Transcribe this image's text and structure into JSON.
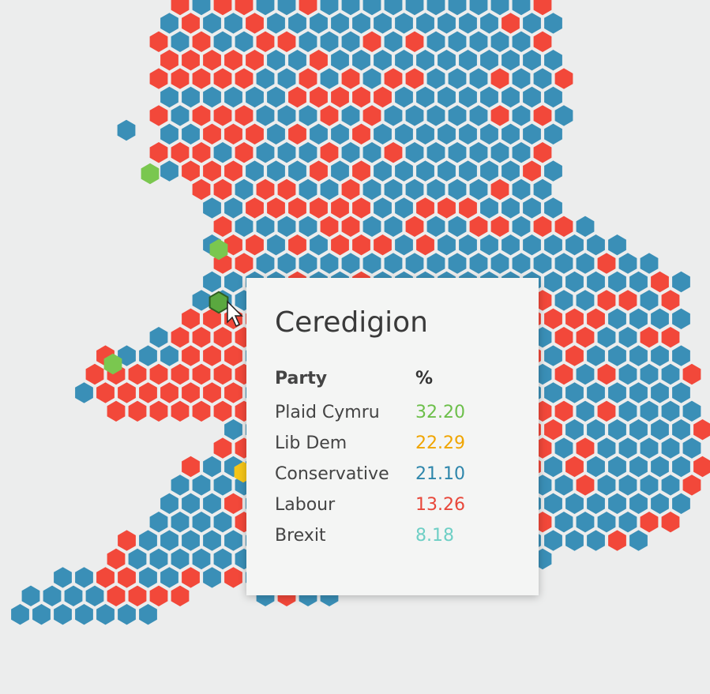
{
  "tooltip": {
    "title": "Ceredigion",
    "header": [
      "Party",
      "%"
    ],
    "rows": [
      [
        "Plaid Cymru",
        "32.20"
      ],
      [
        "Lib Dem",
        "22.29"
      ],
      [
        "Conservative",
        "21.10"
      ],
      [
        "Labour",
        "13.26"
      ],
      [
        "Brexit",
        "8.18"
      ]
    ]
  }
}
